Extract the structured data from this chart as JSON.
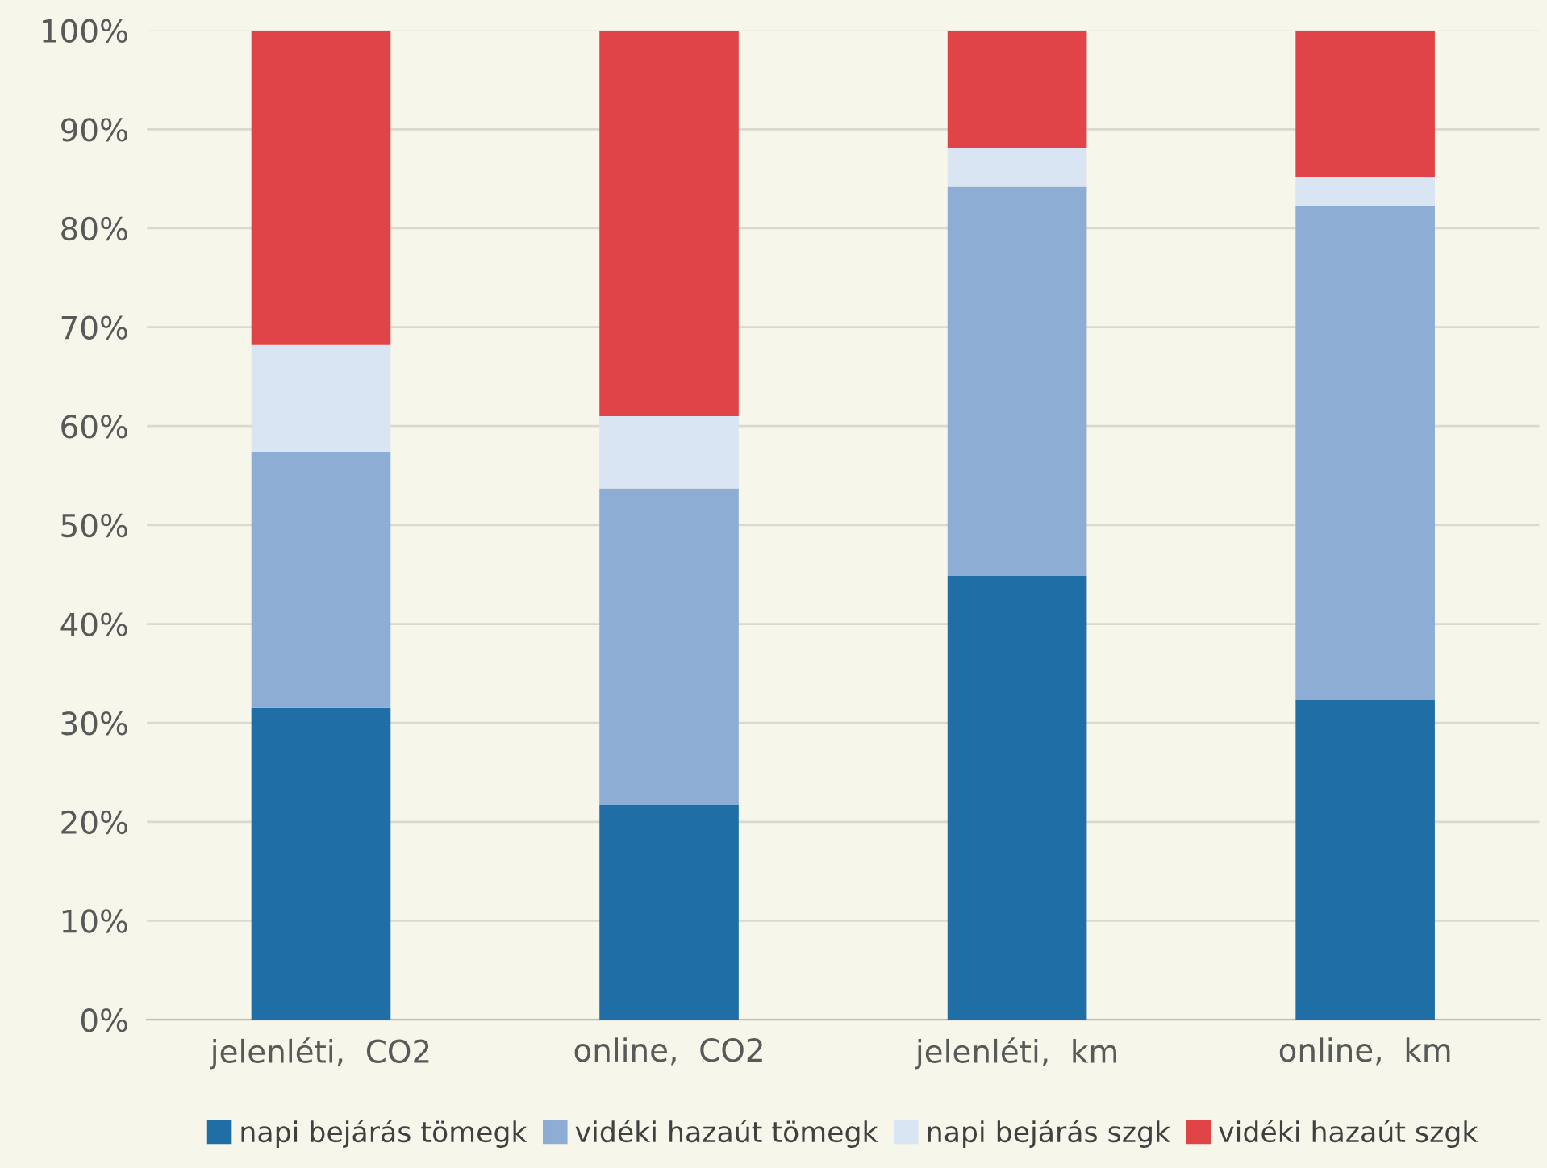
{
  "chart_data": {
    "type": "bar",
    "stacked": true,
    "categories": [
      "jelenléti,  CO2",
      "online,  CO2",
      "jelenléti,  km",
      "online,  km"
    ],
    "series": [
      {
        "name": "napi bejárás tömegk",
        "color": "#1f6fa6",
        "values": [
          31.5,
          21.7,
          44.9,
          32.3
        ]
      },
      {
        "name": "vidéki hazaút tömegk",
        "color": "#8eadd4",
        "values": [
          25.9,
          32.0,
          39.3,
          49.9
        ]
      },
      {
        "name": "napi bejárás szgk",
        "color": "#d9e5f3",
        "values": [
          10.8,
          7.3,
          3.9,
          3.0
        ]
      },
      {
        "name": "vidéki hazaút szgk",
        "color": "#e04448",
        "values": [
          31.8,
          39.0,
          11.9,
          14.8
        ]
      }
    ],
    "ylim": [
      0,
      100
    ],
    "yticks": [
      {
        "value": 0,
        "label": "0%"
      },
      {
        "value": 10,
        "label": "10%"
      },
      {
        "value": 20,
        "label": "20%"
      },
      {
        "value": 30,
        "label": "30%"
      },
      {
        "value": 40,
        "label": "40%"
      },
      {
        "value": 50,
        "label": "50%"
      },
      {
        "value": 60,
        "label": "60%"
      },
      {
        "value": 70,
        "label": "70%"
      },
      {
        "value": 80,
        "label": "80%"
      },
      {
        "value": 90,
        "label": "90%"
      },
      {
        "value": 100,
        "label": "100%"
      }
    ],
    "grid": "y",
    "legend": "bottom"
  }
}
